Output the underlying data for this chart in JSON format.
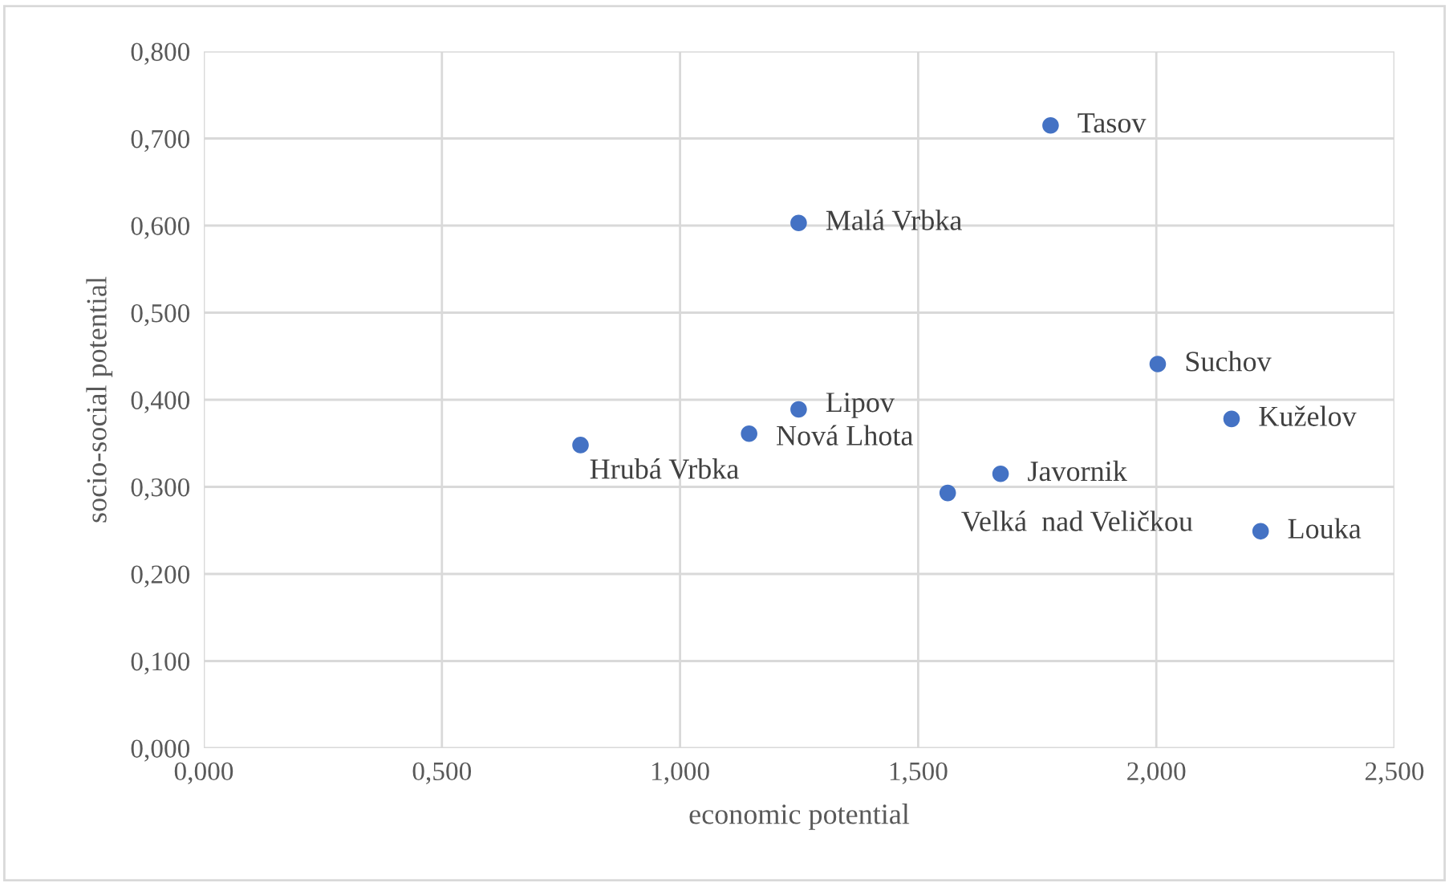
{
  "chart_data": {
    "type": "scatter",
    "xlabel": "economic potential",
    "ylabel": "socio-social potential",
    "x": [
      1.778,
      1.249,
      2.003,
      2.158,
      1.249,
      1.145,
      0.791,
      1.673,
      1.562,
      2.219
    ],
    "series": [
      {
        "color": "#4472c4",
        "values": [
          0.715,
          0.603,
          0.441,
          0.378,
          0.389,
          0.361,
          0.348,
          0.315,
          0.293,
          0.249
        ]
      }
    ],
    "annotations": [
      {
        "text": "Tasov",
        "x": 1.778,
        "y": 0.715
      },
      {
        "text": "Malá Vrbka",
        "x": 1.249,
        "y": 0.603
      },
      {
        "text": "Suchov",
        "x": 2.003,
        "y": 0.441
      },
      {
        "text": "Kuželov",
        "x": 2.158,
        "y": 0.378
      },
      {
        "text": "Lipov",
        "x": 1.249,
        "y": 0.389
      },
      {
        "text": "Nová Lhota",
        "x": 1.145,
        "y": 0.361
      },
      {
        "text": "Hrubá Vrbka",
        "x": 0.791,
        "y": 0.348
      },
      {
        "text": "Javornik",
        "x": 1.673,
        "y": 0.315
      },
      {
        "text": "Velká  nad Veličkou",
        "x": 1.562,
        "y": 0.293
      },
      {
        "text": "Louka",
        "x": 2.219,
        "y": 0.249
      }
    ],
    "xlim": [
      0,
      2.5
    ],
    "ylim": [
      0,
      0.8
    ],
    "xticks": [
      {
        "value": 0,
        "label": "0,000"
      },
      {
        "value": 0.5,
        "label": "0,500"
      },
      {
        "value": 1,
        "label": "1,000"
      },
      {
        "value": 1.5,
        "label": "1,500"
      },
      {
        "value": 2,
        "label": "2,000"
      },
      {
        "value": 2.5,
        "label": "2,500"
      }
    ],
    "yticks": [
      {
        "value": 0,
        "label": "0,000"
      },
      {
        "value": 0.1,
        "label": "0,100"
      },
      {
        "value": 0.2,
        "label": "0,200"
      },
      {
        "value": 0.3,
        "label": "0,300"
      },
      {
        "value": 0.4,
        "label": "0,400"
      },
      {
        "value": 0.5,
        "label": "0,500"
      },
      {
        "value": 0.6,
        "label": "0,600"
      },
      {
        "value": 0.7,
        "label": "0,700"
      },
      {
        "value": 0.8,
        "label": "0,800"
      }
    ],
    "grid": true,
    "marker": "circle"
  }
}
